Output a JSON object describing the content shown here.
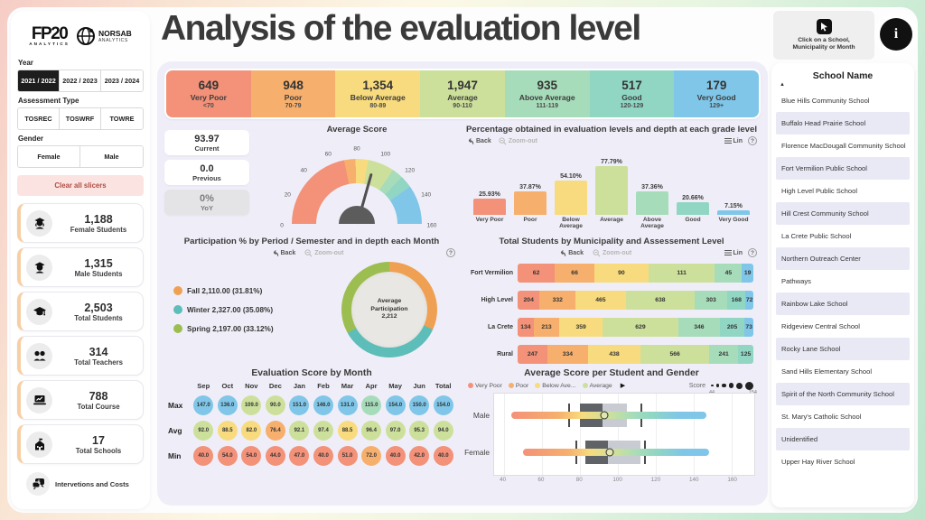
{
  "page": {
    "title": "Analysis of the evaluation level"
  },
  "palette": {
    "very_poor": "#F39179",
    "poor": "#F6AF6D",
    "below_average": "#F8DB7E",
    "average": "#CDE09B",
    "above_average": "#A7DCBA",
    "good": "#90D6C3",
    "very_good": "#7FC6E8"
  },
  "controls": {
    "back": "Back",
    "zoom_out": "Zoom-out",
    "lin": "Lin",
    "help": "?"
  },
  "sidebar": {
    "logo_fp20": {
      "main": "FP20",
      "sub": "ANALYTICS"
    },
    "logo_norsab": {
      "main": "NORSAB",
      "sub": "ANALYTICS"
    },
    "year": {
      "label": "Year",
      "options": [
        "2021 / 2022",
        "2022 / 2023",
        "2023 / 2024"
      ],
      "selected_index": 0
    },
    "assessment": {
      "label": "Assessment Type",
      "options": [
        "TOSREC",
        "TOSWRF",
        "TOWRE"
      ],
      "selected_index": -1
    },
    "gender": {
      "label": "Gender",
      "options": [
        "Female",
        "Male"
      ],
      "selected_index": -1
    },
    "clear_label": "Clear all slicers",
    "stats": [
      {
        "value": "1,188",
        "label": "Female Students",
        "icon": "female-student-icon"
      },
      {
        "value": "1,315",
        "label": "Male Students",
        "icon": "male-student-icon"
      },
      {
        "value": "2,503",
        "label": "Total Students",
        "icon": "graduation-cap-icon"
      },
      {
        "value": "314",
        "label": "Total Teachers",
        "icon": "teachers-icon"
      },
      {
        "value": "788",
        "label": "Total Course",
        "icon": "course-icon"
      },
      {
        "value": "17",
        "label": "Total Schools",
        "icon": "school-building-icon"
      }
    ],
    "interventions_label": "Intervetions and Costs"
  },
  "kpis": [
    {
      "value": "649",
      "label": "Very Poor",
      "range": "<70",
      "level": "very_poor"
    },
    {
      "value": "948",
      "label": "Poor",
      "range": "70-79",
      "level": "poor"
    },
    {
      "value": "1,354",
      "label": "Below Average",
      "range": "80-89",
      "level": "below_average"
    },
    {
      "value": "1,947",
      "label": "Average",
      "range": "90-110",
      "level": "average"
    },
    {
      "value": "935",
      "label": "Above Average",
      "range": "111-119",
      "level": "above_average"
    },
    {
      "value": "517",
      "label": "Good",
      "range": "120-129",
      "level": "good"
    },
    {
      "value": "179",
      "label": "Very Good",
      "range": "129+",
      "level": "very_good"
    }
  ],
  "gauge": {
    "title": "Average Score",
    "current": {
      "value": "93.97",
      "label": "Current"
    },
    "previous": {
      "value": "0.0",
      "label": "Previous"
    },
    "yoy": {
      "value": "0%",
      "label": "YoY"
    },
    "min": 0,
    "max": 160,
    "value": 93.97,
    "ticks": [
      0,
      20,
      40,
      60,
      80,
      100,
      120,
      140,
      160
    ],
    "bands": [
      {
        "to": 70,
        "level": "very_poor"
      },
      {
        "to": 79,
        "level": "poor"
      },
      {
        "to": 89,
        "level": "below_average"
      },
      {
        "to": 110,
        "level": "average"
      },
      {
        "to": 119,
        "level": "above_average"
      },
      {
        "to": 129,
        "level": "good"
      },
      {
        "to": 160,
        "level": "very_good"
      }
    ]
  },
  "grade_chart": {
    "title": "Percentage obtained in evaluation levels and depth at each grade level",
    "chart_data": {
      "type": "bar",
      "categories": [
        "Very Poor",
        "Poor",
        "Below Average",
        "Average",
        "Above Average",
        "Good",
        "Very Good"
      ],
      "values": [
        25.93,
        37.87,
        54.1,
        77.79,
        37.36,
        20.66,
        7.15
      ],
      "value_labels": [
        "25.93%",
        "37.87%",
        "54.10%",
        "77.79%",
        "37.36%",
        "20.66%",
        "7.15%"
      ],
      "levels": [
        "very_poor",
        "poor",
        "below_average",
        "average",
        "above_average",
        "good",
        "very_good"
      ],
      "ylim": [
        0,
        80
      ]
    }
  },
  "participation": {
    "title": "Participation % by Period / Semester and in depth each Month",
    "center_lines": [
      "Average",
      "Participation",
      "2,212"
    ],
    "chart_data": {
      "type": "pie",
      "slices": [
        {
          "label": "Fall 2,110.00 (31.81%)",
          "name": "Fall",
          "value": 2110.0,
          "pct": 31.81,
          "color": "#EFA053"
        },
        {
          "label": "Winter 2,327.00 (35.08%)",
          "name": "Winter",
          "value": 2327.0,
          "pct": 35.08,
          "color": "#5DBDB9"
        },
        {
          "label": "Spring 2,197.00 (33.12%)",
          "name": "Spring",
          "value": 2197.0,
          "pct": 33.12,
          "color": "#9CBE50"
        }
      ]
    }
  },
  "municipality": {
    "title": "Total Students by Municipality and Assessement Level",
    "chart_data": {
      "type": "bar",
      "stacked_pct": true,
      "rows": [
        {
          "name": "Fort Vermilion",
          "cells": [
            {
              "v": 62,
              "level": "very_poor"
            },
            {
              "v": 66,
              "level": "poor"
            },
            {
              "v": 90,
              "level": "below_average"
            },
            {
              "v": 111,
              "level": "average"
            },
            {
              "v": 45,
              "level": "above_average"
            },
            {
              "v": 19,
              "level": "very_good"
            }
          ]
        },
        {
          "name": "High Level",
          "cells": [
            {
              "v": 204,
              "level": "very_poor"
            },
            {
              "v": 332,
              "level": "poor"
            },
            {
              "v": 465,
              "level": "below_average"
            },
            {
              "v": 638,
              "level": "average"
            },
            {
              "v": 303,
              "level": "above_average"
            },
            {
              "v": 168,
              "level": "good"
            },
            {
              "v": 72,
              "level": "very_good"
            }
          ]
        },
        {
          "name": "La Crete",
          "cells": [
            {
              "v": 134,
              "level": "very_poor"
            },
            {
              "v": 213,
              "level": "poor"
            },
            {
              "v": 359,
              "level": "below_average"
            },
            {
              "v": 629,
              "level": "average"
            },
            {
              "v": 346,
              "level": "above_average"
            },
            {
              "v": 205,
              "level": "good"
            },
            {
              "v": 73,
              "level": "very_good"
            }
          ]
        },
        {
          "name": "Rural",
          "cells": [
            {
              "v": 247,
              "level": "very_poor"
            },
            {
              "v": 334,
              "level": "poor"
            },
            {
              "v": 438,
              "level": "below_average"
            },
            {
              "v": 566,
              "level": "average"
            },
            {
              "v": 241,
              "level": "above_average"
            },
            {
              "v": 125,
              "level": "good"
            }
          ]
        }
      ]
    }
  },
  "monthly": {
    "title": "Evaluation Score by Month",
    "chart_data": {
      "type": "table",
      "columns": [
        "Sep",
        "Oct",
        "Nov",
        "Dec",
        "Jan",
        "Feb",
        "Mar",
        "Apr",
        "May",
        "Jun",
        "Total"
      ],
      "rows": [
        {
          "label": "Max",
          "values": [
            "147.0",
            "136.0",
            "109.0",
            "90.0",
            "151.0",
            "146.0",
            "131.0",
            "115.0",
            "154.0",
            "150.0",
            "154.0"
          ],
          "levels": [
            "very_good",
            "very_good",
            "average",
            "average",
            "very_good",
            "very_good",
            "very_good",
            "above_average",
            "very_good",
            "very_good",
            "very_good"
          ]
        },
        {
          "label": "Avg",
          "values": [
            "92.0",
            "88.5",
            "82.0",
            "76.4",
            "92.1",
            "97.4",
            "88.5",
            "96.4",
            "97.0",
            "95.3",
            "94.0"
          ],
          "levels": [
            "average",
            "below_average",
            "below_average",
            "poor",
            "average",
            "average",
            "below_average",
            "average",
            "average",
            "average",
            "average"
          ]
        },
        {
          "label": "Min",
          "values": [
            "40.0",
            "54.0",
            "54.0",
            "44.0",
            "47.0",
            "40.0",
            "51.0",
            "72.0",
            "40.0",
            "42.0",
            "40.0"
          ],
          "levels": [
            "very_poor",
            "very_poor",
            "very_poor",
            "very_poor",
            "very_poor",
            "very_poor",
            "very_poor",
            "poor",
            "very_poor",
            "very_poor",
            "very_poor"
          ]
        }
      ]
    }
  },
  "boxplot": {
    "title": "Average Score per Student and Gender",
    "legend": [
      {
        "label": "Very Poor",
        "level": "very_poor"
      },
      {
        "label": "Poor",
        "level": "poor"
      },
      {
        "label": "Below Ave...",
        "level": "below_average"
      },
      {
        "label": "Average",
        "level": "average"
      }
    ],
    "score_legend": {
      "label": "Score",
      "min": "44",
      "max": "154"
    },
    "chart_data": {
      "type": "scatter",
      "axis": {
        "min": 35,
        "max": 172,
        "ticks": [
          40,
          60,
          80,
          100,
          120,
          140,
          160
        ]
      },
      "rows": [
        {
          "label": "Male",
          "strip": [
            44,
            147
          ],
          "whiskers": [
            74,
            112
          ],
          "box_dark": [
            80,
            92
          ],
          "box_light": [
            92,
            105
          ],
          "marker": 93
        },
        {
          "label": "Female",
          "strip": [
            50,
            148
          ],
          "whiskers": [
            78,
            114
          ],
          "box_dark": [
            83,
            95
          ],
          "box_light": [
            95,
            112
          ],
          "marker": 96
        }
      ]
    }
  },
  "right_panel": {
    "click_hint": "Click on a School, Municipality or Month",
    "info_label": "i",
    "school_header": "School Name",
    "sort_icon": "▲",
    "schools": [
      "Blue Hills Community School",
      "Buffalo Head Prairie School",
      "Florence MacDougall Community School",
      "Fort Vermilion Public School",
      "High Level Public School",
      "Hill Crest Community School",
      "La Crete Public School",
      "Northern Outreach Center",
      "Pathways",
      "Rainbow Lake School",
      "Ridgeview Central School",
      "Rocky Lane School",
      "Sand Hills Elementary School",
      "Spirit of the North Community School",
      "St. Mary's Catholic School",
      "Unidentified",
      "Upper Hay River School"
    ]
  }
}
